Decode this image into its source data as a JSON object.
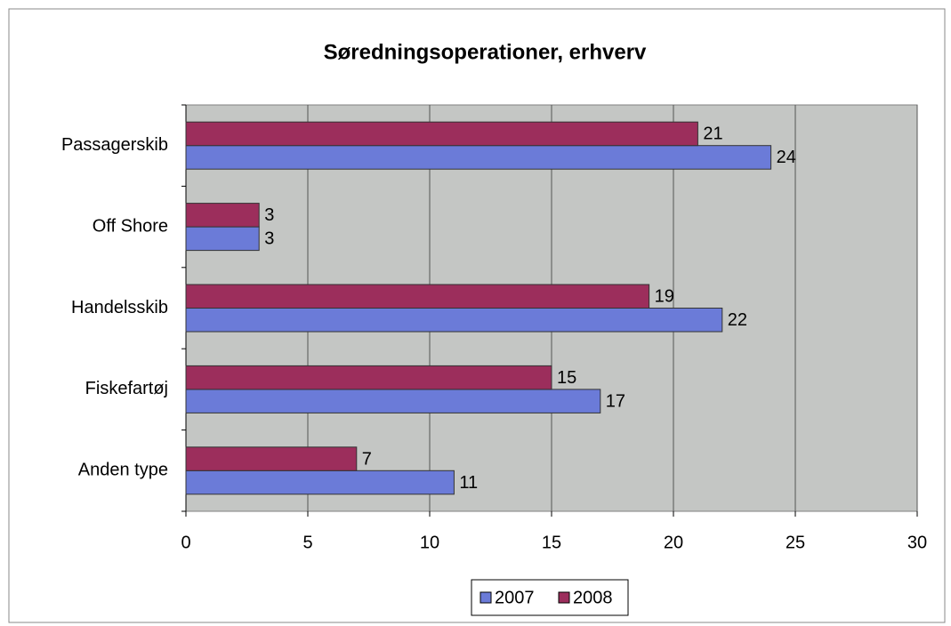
{
  "chart_data": {
    "type": "hbar",
    "title": "Søredningsoperationer, erhverv",
    "categories": [
      "Passagerskib",
      "Off Shore",
      "Handelsskib",
      "Fiskefartøj",
      "Anden type"
    ],
    "series": [
      {
        "name": "2007",
        "color": "#6b7bd8",
        "values": [
          24,
          3,
          22,
          17,
          11
        ]
      },
      {
        "name": "2008",
        "color": "#9c2e5c",
        "values": [
          21,
          3,
          19,
          15,
          7
        ]
      }
    ],
    "xlim": [
      0,
      30
    ],
    "xticks": [
      0,
      5,
      10,
      15,
      20,
      25,
      30
    ],
    "grid": true,
    "legend": "bottom"
  }
}
